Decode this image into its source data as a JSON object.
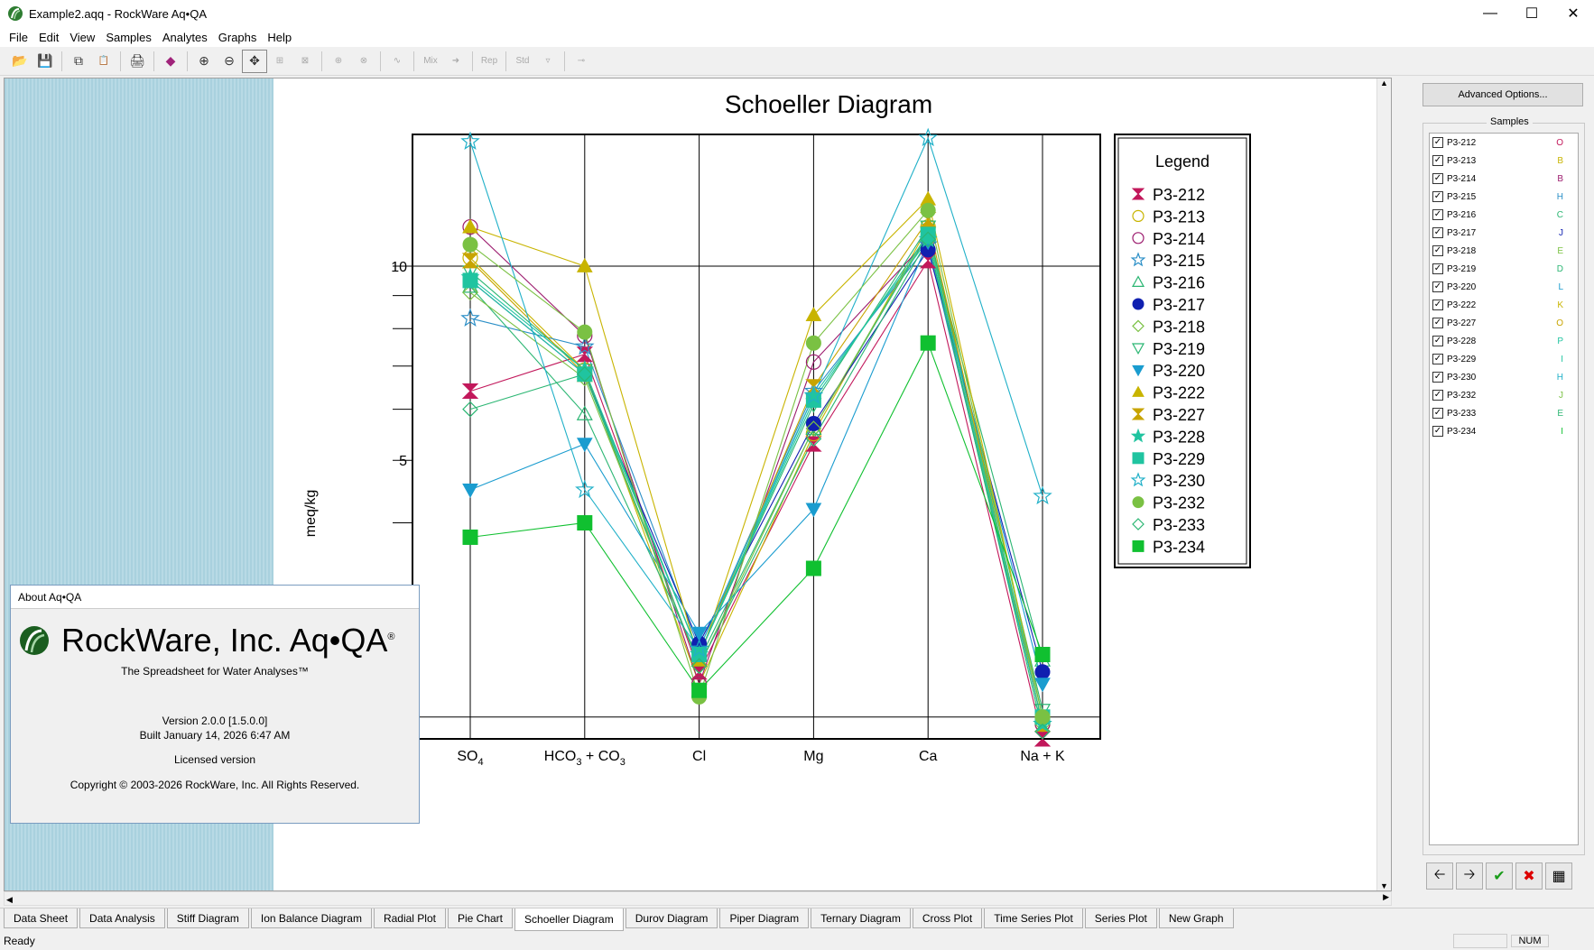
{
  "window": {
    "title": "Example2.aqq - RockWare Aq•QA"
  },
  "menu": [
    "File",
    "Edit",
    "View",
    "Samples",
    "Analytes",
    "Graphs",
    "Help"
  ],
  "toolbar_disabled_labels": {
    "mix": "Mix",
    "rep": "Rep",
    "std": "Std"
  },
  "about": {
    "header": "About Aq•QA",
    "brand": "RockWare, Inc. Aq•QA",
    "reg": "®",
    "tagline": "The Spreadsheet for Water Analyses™",
    "version": "Version 2.0.0 [1.5.0.0]",
    "built": "Built January 14, 2026 6:47 AM",
    "license": "Licensed version",
    "copyright": "Copyright © 2003-2026 RockWare, Inc.  All Rights Reserved."
  },
  "side": {
    "advanced_button": "Advanced Options...",
    "samples_label": "Samples",
    "samples": [
      {
        "name": "P3-212",
        "code": "O",
        "color": "#c2185b"
      },
      {
        "name": "P3-213",
        "code": "B",
        "color": "#c8b400"
      },
      {
        "name": "P3-214",
        "code": "B",
        "color": "#9c1b6e"
      },
      {
        "name": "P3-215",
        "code": "H",
        "color": "#2b8fc7"
      },
      {
        "name": "P3-216",
        "code": "C",
        "color": "#2bb673"
      },
      {
        "name": "P3-217",
        "code": "J",
        "color": "#1020b0"
      },
      {
        "name": "P3-218",
        "code": "E",
        "color": "#7ac143"
      },
      {
        "name": "P3-219",
        "code": "D",
        "color": "#2bb673"
      },
      {
        "name": "P3-220",
        "code": "L",
        "color": "#1a9ccf"
      },
      {
        "name": "P3-222",
        "code": "K",
        "color": "#c8b400"
      },
      {
        "name": "P3-227",
        "code": "O",
        "color": "#c8a400"
      },
      {
        "name": "P3-228",
        "code": "P",
        "color": "#20c4a0"
      },
      {
        "name": "P3-229",
        "code": "I",
        "color": "#20c4a0"
      },
      {
        "name": "P3-230",
        "code": "H",
        "color": "#20b0c8"
      },
      {
        "name": "P3-232",
        "code": "J",
        "color": "#7ac143"
      },
      {
        "name": "P3-233",
        "code": "E",
        "color": "#2bb673"
      },
      {
        "name": "P3-234",
        "code": "I",
        "color": "#10c030"
      }
    ]
  },
  "tabs": [
    {
      "label": "Data Sheet",
      "active": false
    },
    {
      "label": "Data Analysis",
      "active": false
    },
    {
      "label": "Stiff Diagram",
      "active": false
    },
    {
      "label": "Ion Balance Diagram",
      "active": false
    },
    {
      "label": "Radial Plot",
      "active": false
    },
    {
      "label": "Pie Chart",
      "active": false
    },
    {
      "label": "Schoeller Diagram",
      "active": true
    },
    {
      "label": "Durov Diagram",
      "active": false
    },
    {
      "label": "Piper Diagram",
      "active": false
    },
    {
      "label": "Ternary Diagram",
      "active": false
    },
    {
      "label": "Cross Plot",
      "active": false
    },
    {
      "label": "Time Series Plot",
      "active": false
    },
    {
      "label": "Series Plot",
      "active": false
    },
    {
      "label": "New Graph",
      "active": false
    }
  ],
  "status": {
    "left": "Ready",
    "num": "NUM"
  },
  "chart_data": {
    "type": "line",
    "title": "Schoeller Diagram",
    "ylabel": "meq/kg",
    "yscale": "log",
    "ylim": [
      1.85,
      16
    ],
    "yticks": [
      {
        "v": 10,
        "label": "10"
      },
      {
        "v": 5,
        "label": "5"
      }
    ],
    "categories": [
      {
        "main": "SO",
        "sub": "4",
        "rest": ""
      },
      {
        "main": "HCO",
        "sub": "3",
        "rest": " + CO",
        "sub2": "3"
      },
      {
        "main": "Cl"
      },
      {
        "main": "Mg"
      },
      {
        "main": "Ca"
      },
      {
        "main": "Na + K"
      }
    ],
    "legend_title": "Legend",
    "series": [
      {
        "name": "P3-212",
        "color": "#c2185b",
        "marker": "hourglass",
        "values": [
          6.4,
          7.3,
          2.35,
          5.3,
          10.2,
          1.85
        ]
      },
      {
        "name": "P3-213",
        "color": "#c8b400",
        "marker": "circle-open",
        "values": [
          10.3,
          6.9,
          2.25,
          5.5,
          11.5,
          1.95
        ]
      },
      {
        "name": "P3-214",
        "color": "#9c1b6e",
        "marker": "circle-open",
        "values": [
          11.5,
          7.8,
          2.25,
          7.1,
          11.0,
          1.95
        ]
      },
      {
        "name": "P3-215",
        "color": "#2b8fc7",
        "marker": "star-open",
        "values": [
          8.3,
          7.5,
          2.55,
          6.4,
          10.8,
          1.95
        ]
      },
      {
        "name": "P3-216",
        "color": "#2bb673",
        "marker": "triangle-up-open",
        "values": [
          9.3,
          5.9,
          2.45,
          5.6,
          11.2,
          2.45
        ]
      },
      {
        "name": "P3-217",
        "color": "#1020b0",
        "marker": "circle",
        "values": [
          9.5,
          6.8,
          2.6,
          5.7,
          10.6,
          2.35
        ]
      },
      {
        "name": "P3-218",
        "color": "#7ac143",
        "marker": "diamond-open",
        "values": [
          9.1,
          6.7,
          2.4,
          5.6,
          11.3,
          1.95
        ]
      },
      {
        "name": "P3-219",
        "color": "#2bb673",
        "marker": "triangle-down-open",
        "values": [
          9.8,
          6.9,
          2.5,
          6.1,
          11.5,
          2.05
        ]
      },
      {
        "name": "P3-220",
        "color": "#1a9ccf",
        "marker": "triangle-down",
        "values": [
          4.5,
          5.3,
          2.7,
          4.2,
          10.9,
          2.25
        ]
      },
      {
        "name": "P3-222",
        "color": "#c8b400",
        "marker": "triangle-up",
        "values": [
          11.5,
          10.0,
          2.45,
          8.4,
          12.7,
          2.0
        ]
      },
      {
        "name": "P3-227",
        "color": "#c8a400",
        "marker": "hourglass",
        "values": [
          10.2,
          6.8,
          2.5,
          6.5,
          11.8,
          1.95
        ]
      },
      {
        "name": "P3-228",
        "color": "#20c4a0",
        "marker": "star",
        "values": [
          9.6,
          6.9,
          2.5,
          6.3,
          11.0,
          1.95
        ]
      },
      {
        "name": "P3-229",
        "color": "#20c4a0",
        "marker": "square",
        "values": [
          9.5,
          6.8,
          2.5,
          6.2,
          11.2,
          2.0
        ]
      },
      {
        "name": "P3-230",
        "color": "#20b0c8",
        "marker": "star-open",
        "values": [
          15.6,
          4.5,
          2.55,
          6.3,
          15.8,
          4.4
        ]
      },
      {
        "name": "P3-232",
        "color": "#7ac143",
        "marker": "circle",
        "values": [
          10.8,
          7.9,
          2.15,
          7.6,
          12.2,
          2.0
        ]
      },
      {
        "name": "P3-233",
        "color": "#2bb673",
        "marker": "diamond-open",
        "values": [
          6.0,
          6.8,
          2.4,
          5.4,
          11.0,
          1.9
        ]
      },
      {
        "name": "P3-234",
        "color": "#10c030",
        "marker": "square",
        "values": [
          3.8,
          4.0,
          2.2,
          3.4,
          7.6,
          2.5
        ]
      }
    ]
  }
}
